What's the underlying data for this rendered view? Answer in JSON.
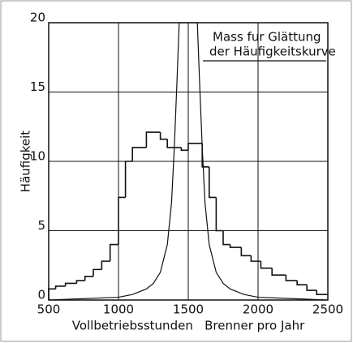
{
  "chart_data": {
    "type": "histogram",
    "ylabel": "Häufigkeit",
    "xlabel": "Vollbetriebsstunden   Brenner pro Jahr",
    "annotation": [
      "Mass fur Glättung",
      "der Häufigkeitskurve"
    ],
    "bins": [
      500,
      550,
      620,
      700,
      760,
      820,
      880,
      940,
      1000,
      1050,
      1100,
      1200,
      1300,
      1350,
      1450,
      1500,
      1600,
      1650,
      1700,
      1750,
      1800,
      1880,
      1950,
      2020,
      2100,
      2200,
      2280,
      2350,
      2420,
      2500
    ],
    "counts": [
      0.8,
      1.0,
      1.2,
      1.4,
      1.7,
      2.2,
      2.8,
      4.0,
      7.4,
      10.0,
      11.0,
      12.1,
      11.6,
      11.0,
      10.8,
      11.3,
      9.6,
      7.4,
      5.0,
      4.0,
      3.8,
      3.2,
      2.8,
      2.3,
      1.8,
      1.4,
      1.1,
      0.7,
      0.4
    ],
    "curve": {
      "x": [
        500,
        1000,
        1100,
        1200,
        1250,
        1300,
        1350,
        1380,
        1400,
        1420,
        1435,
        1500,
        1565,
        1580,
        1600,
        1620,
        1650,
        1700,
        1750,
        1800,
        1900,
        2000,
        2500
      ],
      "values": [
        0,
        0.2,
        0.4,
        0.8,
        1.2,
        2,
        4,
        7,
        11,
        16,
        20,
        20,
        20,
        16,
        11,
        7,
        4,
        2,
        1.2,
        0.8,
        0.4,
        0.2,
        0
      ]
    },
    "color": "#111111",
    "xlim": [
      500,
      2500
    ],
    "xticks": [
      500,
      1000,
      1500,
      2000,
      2500
    ],
    "ylim": [
      0,
      20
    ],
    "yticks": [
      0,
      5,
      10,
      15,
      20
    ],
    "grid": true
  }
}
